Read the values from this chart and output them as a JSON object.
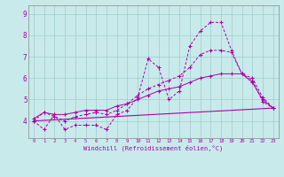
{
  "title": "",
  "xlabel": "Windchill (Refroidissement éolien,°C)",
  "ylabel": "",
  "background_color": "#c8eaea",
  "grid_color": "#a0cccc",
  "line_color": "#aa00aa",
  "xlim": [
    -0.5,
    23.5
  ],
  "ylim": [
    3.2,
    9.4
  ],
  "x_ticks": [
    0,
    1,
    2,
    3,
    4,
    5,
    6,
    7,
    8,
    9,
    10,
    11,
    12,
    13,
    14,
    15,
    16,
    17,
    18,
    19,
    20,
    21,
    22,
    23
  ],
  "y_ticks": [
    4,
    5,
    6,
    7,
    8,
    9
  ],
  "series": [
    {
      "x": [
        0,
        1,
        2,
        3,
        4,
        5,
        6,
        7,
        8,
        9,
        10,
        11,
        12,
        13,
        14,
        15,
        16,
        17,
        18,
        19,
        20,
        21,
        22,
        23
      ],
      "y": [
        4.0,
        3.6,
        4.3,
        3.6,
        3.8,
        3.8,
        3.8,
        3.6,
        4.3,
        4.5,
        5.1,
        6.9,
        6.5,
        5.0,
        5.4,
        7.5,
        8.2,
        8.6,
        8.6,
        7.3,
        6.2,
        5.9,
        4.9,
        4.6
      ],
      "style": "--",
      "marker": "+"
    },
    {
      "x": [
        0,
        1,
        2,
        3,
        4,
        5,
        6,
        7,
        8,
        9,
        10,
        11,
        12,
        13,
        14,
        15,
        16,
        17,
        18,
        19,
        20,
        21,
        22,
        23
      ],
      "y": [
        4.0,
        4.4,
        4.2,
        4.0,
        4.2,
        4.3,
        4.4,
        4.3,
        4.5,
        4.8,
        5.2,
        5.5,
        5.7,
        5.9,
        6.1,
        6.5,
        7.1,
        7.3,
        7.3,
        7.2,
        6.2,
        6.0,
        5.1,
        4.6
      ],
      "style": "--",
      "marker": "+"
    },
    {
      "x": [
        0,
        1,
        2,
        3,
        4,
        5,
        6,
        7,
        8,
        9,
        10,
        11,
        12,
        13,
        14,
        15,
        16,
        17,
        18,
        19,
        20,
        21,
        22,
        23
      ],
      "y": [
        4.1,
        4.4,
        4.3,
        4.3,
        4.4,
        4.5,
        4.5,
        4.5,
        4.7,
        4.8,
        5.0,
        5.2,
        5.4,
        5.5,
        5.6,
        5.8,
        6.0,
        6.1,
        6.2,
        6.2,
        6.2,
        5.8,
        5.0,
        4.6
      ],
      "style": "-",
      "marker": "+"
    },
    {
      "x": [
        0,
        23
      ],
      "y": [
        4.0,
        4.6
      ],
      "style": "-",
      "marker": null
    }
  ],
  "figsize": [
    3.2,
    2.0
  ],
  "dpi": 100
}
